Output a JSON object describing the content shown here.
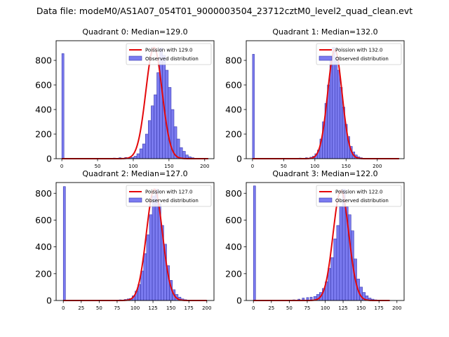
{
  "figure_title": "Data file: modeM0/AS1A07_054T01_9000003504_23712cztM0_level2_quad_clean.evt",
  "chart_data": [
    {
      "type": "bar",
      "title": "Quadrant 0: Median=129.0",
      "xlim": [
        -8,
        213
      ],
      "ylim": [
        0,
        960
      ],
      "xticks": [
        0,
        50,
        100,
        150,
        200
      ],
      "yticks": [
        0,
        200,
        400,
        600,
        800
      ],
      "zero_bin_count": 855,
      "hist": {
        "bin_start": 97,
        "bin_width": 4,
        "values": [
          10,
          20,
          40,
          80,
          120,
          200,
          310,
          430,
          520,
          700,
          900,
          840,
          720,
          580,
          400,
          260,
          160,
          90,
          60,
          30,
          15,
          8,
          4
        ],
        "low_tail": [
          [
            60,
            3
          ],
          [
            72,
            5
          ],
          [
            80,
            8
          ],
          [
            88,
            10
          ],
          [
            93,
            5
          ]
        ]
      },
      "curve": {
        "label": "Poission with 129.0",
        "mean": 129.0,
        "peak": 905,
        "sigma": 11.4,
        "x_range": [
          0,
          205
        ]
      },
      "legend": {
        "poisson": "Poission with 129.0",
        "observed": "Observed distribution",
        "position": "upper right"
      }
    },
    {
      "type": "bar",
      "title": "Quadrant 1: Median=132.0",
      "xlim": [
        -10,
        243
      ],
      "ylim": [
        0,
        960
      ],
      "xticks": [
        0,
        50,
        100,
        150,
        200
      ],
      "yticks": [
        0,
        200,
        400,
        600,
        800
      ],
      "zero_bin_count": 850,
      "hist": {
        "bin_start": 96,
        "bin_width": 4,
        "values": [
          20,
          40,
          70,
          160,
          300,
          450,
          600,
          800,
          905,
          820,
          720,
          580,
          420,
          280,
          180,
          100,
          55,
          30,
          15,
          8,
          4
        ],
        "low_tail": [
          [
            65,
            3
          ],
          [
            75,
            5
          ],
          [
            85,
            8
          ],
          [
            92,
            12
          ]
        ]
      },
      "curve": {
        "label": "Poission with 132.0",
        "mean": 132.0,
        "peak": 885,
        "sigma": 11.5,
        "x_range": [
          0,
          235
        ]
      },
      "legend": {
        "poisson": "Poission with 132.0",
        "observed": "Observed distribution",
        "position": "upper right"
      }
    },
    {
      "type": "bar",
      "title": "Quadrant 2: Median=127.0",
      "xlim": [
        -10,
        210
      ],
      "ylim": [
        0,
        880
      ],
      "xticks": [
        0,
        25,
        50,
        75,
        100,
        125,
        150,
        175,
        200
      ],
      "yticks": [
        0,
        200,
        400,
        600,
        800
      ],
      "zero_bin_count": 850,
      "hist": {
        "bin_start": 92,
        "bin_width": 4,
        "values": [
          15,
          35,
          70,
          120,
          220,
          350,
          490,
          640,
          780,
          830,
          720,
          560,
          420,
          260,
          150,
          80,
          45,
          25,
          12,
          6
        ],
        "low_tail": [
          [
            70,
            3
          ],
          [
            78,
            5
          ],
          [
            85,
            8
          ],
          [
            89,
            12
          ]
        ]
      },
      "curve": {
        "label": "Poission with 127.0",
        "mean": 127.0,
        "peak": 830,
        "sigma": 11.2,
        "x_range": [
          0,
          200
        ]
      },
      "legend": {
        "poisson": "Poission with 127.0",
        "observed": "Observed distribution",
        "position": "upper right"
      }
    },
    {
      "type": "bar",
      "title": "Quadrant 3: Median=122.0",
      "xlim": [
        -10,
        210
      ],
      "ylim": [
        0,
        880
      ],
      "xticks": [
        0,
        25,
        50,
        75,
        100,
        125,
        150,
        175,
        200
      ],
      "yticks": [
        0,
        200,
        400,
        600,
        800
      ],
      "zero_bin_count": 855,
      "hist": {
        "bin_start": 84,
        "bin_width": 4,
        "values": [
          30,
          45,
          60,
          90,
          140,
          240,
          320,
          460,
          560,
          700,
          830,
          700,
          640,
          520,
          310,
          160,
          100,
          60,
          35,
          18,
          10,
          5
        ],
        "low_tail": [
          [
            55,
            5
          ],
          [
            62,
            10
          ],
          [
            68,
            18
          ],
          [
            74,
            22
          ],
          [
            79,
            25
          ]
        ]
      },
      "curve": {
        "label": "Poission with 122.0",
        "mean": 122.0,
        "peak": 820,
        "sigma": 11.0,
        "x_range": [
          0,
          190
        ]
      },
      "legend": {
        "poisson": "Poission with 122.0",
        "observed": "Observed distribution",
        "position": "upper right"
      }
    }
  ]
}
